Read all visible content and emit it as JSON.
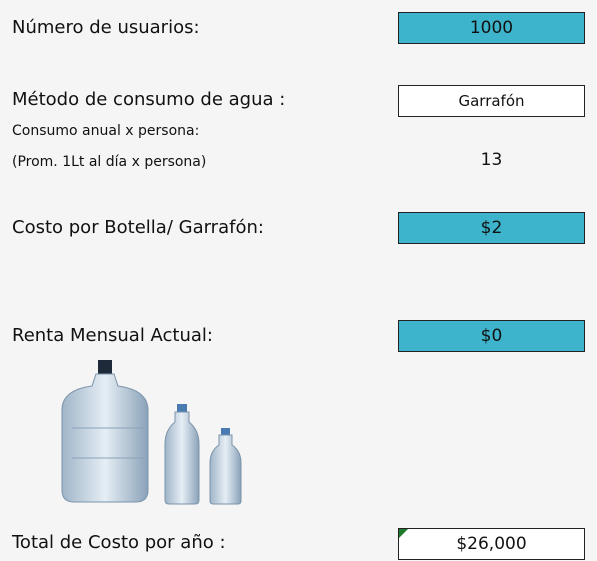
{
  "fields": [
    {
      "label": "Número de usuarios:",
      "value": "1000"
    },
    {
      "label": "Método de consumo de agua :",
      "value": "Garrafón"
    },
    {
      "label": "Costo por Botella/ Garrafón:",
      "value": "$2"
    },
    {
      "label": "Renta Mensual Actual:",
      "value": "$0"
    },
    {
      "label": "Total de Costo por año :",
      "value": "$26,000"
    }
  ],
  "consumption": {
    "label_line1": "Consumo anual x persona:",
    "label_line2": "(Prom. 1Lt al día x persona)",
    "value": "13"
  }
}
